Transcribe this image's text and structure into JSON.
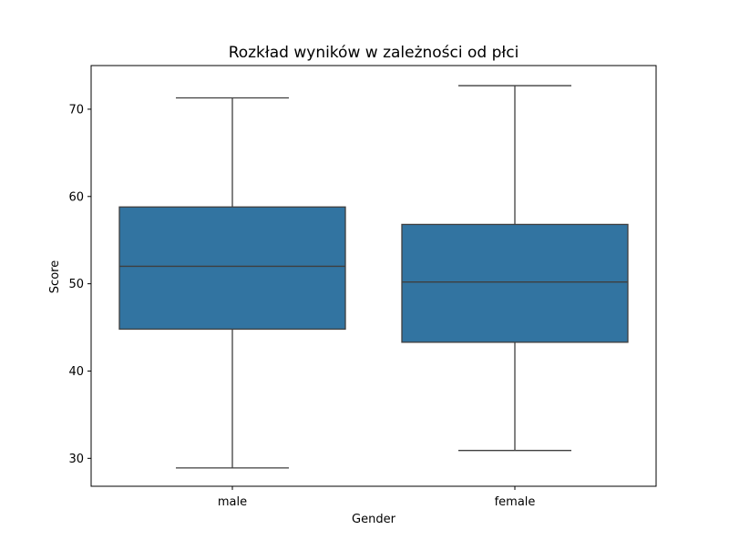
{
  "chart_data": {
    "type": "box",
    "title": "Rozkład wyników w zależności od płci",
    "xlabel": "Gender",
    "ylabel": "Score",
    "ylim": [
      26.8,
      75.0
    ],
    "yticks": [
      30,
      40,
      50,
      60,
      70
    ],
    "categories": [
      "male",
      "female"
    ],
    "boxes": [
      {
        "category": "male",
        "whisker_low": 28.9,
        "q1": 44.8,
        "median": 52.0,
        "q3": 58.8,
        "whisker_high": 71.3
      },
      {
        "category": "female",
        "whisker_low": 30.9,
        "q1": 43.3,
        "median": 50.2,
        "q3": 56.8,
        "whisker_high": 72.7
      }
    ],
    "colors": {
      "box_fill": "#3274a1",
      "line": "#3f3f3f"
    },
    "grid": false,
    "legend": "none"
  }
}
